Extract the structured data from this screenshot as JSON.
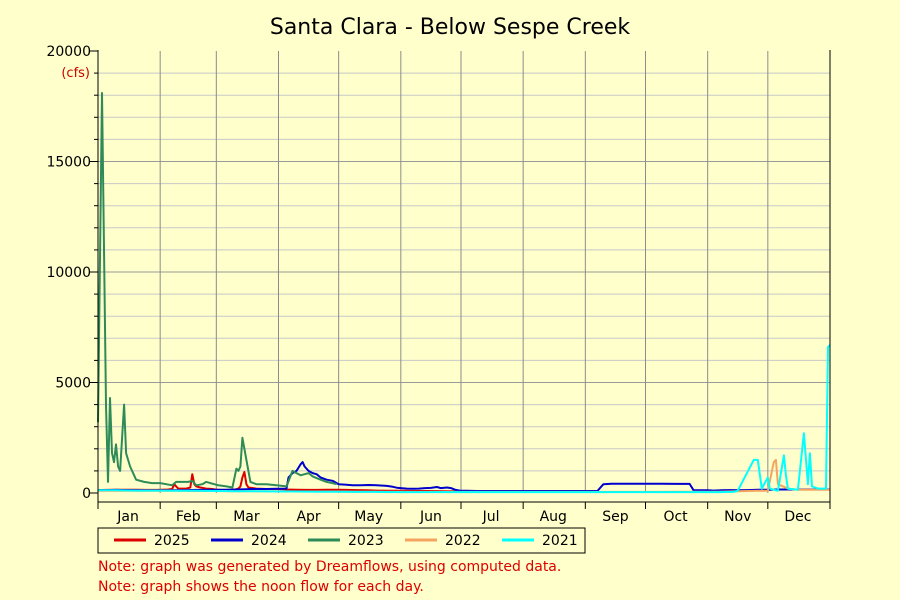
{
  "chart_data": {
    "type": "line",
    "title": "Santa Clara - Below Sespe Creek",
    "ylabel": "(cfs)",
    "xlabel": "",
    "ylim": [
      0,
      20000
    ],
    "y_ticks": [
      0,
      5000,
      10000,
      15000,
      20000
    ],
    "xlim": [
      1,
      366
    ],
    "x_ticks": [
      {
        "label": "Jan",
        "day": 16
      },
      {
        "label": "Feb",
        "day": 46
      },
      {
        "label": "Mar",
        "day": 75
      },
      {
        "label": "Apr",
        "day": 106
      },
      {
        "label": "May",
        "day": 136
      },
      {
        "label": "Jun",
        "day": 167
      },
      {
        "label": "Jul",
        "day": 197
      },
      {
        "label": "Aug",
        "day": 228
      },
      {
        "label": "Sep",
        "day": 259
      },
      {
        "label": "Oct",
        "day": 289
      },
      {
        "label": "Nov",
        "day": 320
      },
      {
        "label": "Dec",
        "day": 350
      }
    ],
    "month_starts": [
      1,
      32,
      60,
      91,
      121,
      152,
      182,
      213,
      244,
      274,
      305,
      335,
      366
    ],
    "grid": true,
    "legend_position": "bottom",
    "series": [
      {
        "name": "2025",
        "color": "#dd0000",
        "points": [
          [
            1,
            130
          ],
          [
            5,
            140
          ],
          [
            10,
            150
          ],
          [
            15,
            150
          ],
          [
            20,
            150
          ],
          [
            25,
            140
          ],
          [
            30,
            140
          ],
          [
            33,
            150
          ],
          [
            36,
            160
          ],
          [
            38,
            180
          ],
          [
            39,
            400
          ],
          [
            40,
            300
          ],
          [
            41,
            200
          ],
          [
            43,
            200
          ],
          [
            45,
            200
          ],
          [
            47,
            250
          ],
          [
            48,
            850
          ],
          [
            49,
            400
          ],
          [
            50,
            300
          ],
          [
            52,
            250
          ],
          [
            55,
            200
          ],
          [
            58,
            180
          ],
          [
            60,
            150
          ],
          [
            63,
            130
          ],
          [
            66,
            140
          ],
          [
            69,
            150
          ],
          [
            71,
            200
          ],
          [
            72,
            300
          ],
          [
            73,
            700
          ],
          [
            74,
            950
          ],
          [
            75,
            400
          ],
          [
            76,
            250
          ],
          [
            80,
            200
          ],
          [
            85,
            180
          ],
          [
            90,
            180
          ],
          [
            95,
            160
          ],
          [
            100,
            150
          ],
          [
            105,
            140
          ],
          [
            110,
            140
          ],
          [
            115,
            150
          ],
          [
            120,
            150
          ],
          [
            125,
            140
          ],
          [
            130,
            130
          ],
          [
            135,
            120
          ],
          [
            140,
            110
          ],
          [
            145,
            100
          ],
          [
            150,
            100
          ],
          [
            155,
            95
          ],
          [
            160,
            90
          ],
          [
            165,
            90
          ],
          [
            170,
            85
          ],
          [
            175,
            80
          ],
          [
            180,
            80
          ],
          [
            185,
            80
          ],
          [
            190,
            75
          ],
          [
            195,
            75
          ],
          [
            199,
            75
          ]
        ]
      },
      {
        "name": "2024",
        "color": "#0000cc",
        "points": [
          [
            1,
            130
          ],
          [
            5,
            130
          ],
          [
            10,
            140
          ],
          [
            15,
            130
          ],
          [
            20,
            130
          ],
          [
            25,
            120
          ],
          [
            30,
            120
          ],
          [
            33,
            120
          ],
          [
            40,
            130
          ],
          [
            45,
            130
          ],
          [
            50,
            140
          ],
          [
            55,
            140
          ],
          [
            60,
            150
          ],
          [
            65,
            150
          ],
          [
            70,
            160
          ],
          [
            75,
            170
          ],
          [
            80,
            180
          ],
          [
            85,
            180
          ],
          [
            90,
            190
          ],
          [
            95,
            200
          ],
          [
            96,
            700
          ],
          [
            98,
            900
          ],
          [
            100,
            1000
          ],
          [
            102,
            1300
          ],
          [
            103,
            1400
          ],
          [
            104,
            1200
          ],
          [
            106,
            1000
          ],
          [
            108,
            900
          ],
          [
            110,
            850
          ],
          [
            112,
            700
          ],
          [
            115,
            600
          ],
          [
            118,
            550
          ],
          [
            120,
            450
          ],
          [
            121,
            400
          ],
          [
            124,
            380
          ],
          [
            128,
            350
          ],
          [
            132,
            350
          ],
          [
            136,
            360
          ],
          [
            140,
            350
          ],
          [
            145,
            320
          ],
          [
            148,
            280
          ],
          [
            150,
            240
          ],
          [
            152,
            220
          ],
          [
            155,
            200
          ],
          [
            158,
            190
          ],
          [
            161,
            200
          ],
          [
            164,
            220
          ],
          [
            167,
            230
          ],
          [
            170,
            270
          ],
          [
            172,
            220
          ],
          [
            175,
            250
          ],
          [
            177,
            220
          ],
          [
            179,
            150
          ],
          [
            182,
            100
          ],
          [
            185,
            100
          ],
          [
            190,
            90
          ],
          [
            195,
            90
          ],
          [
            200,
            90
          ],
          [
            205,
            90
          ],
          [
            210,
            90
          ],
          [
            215,
            90
          ],
          [
            220,
            90
          ],
          [
            225,
            90
          ],
          [
            230,
            90
          ],
          [
            235,
            90
          ],
          [
            240,
            90
          ],
          [
            244,
            90
          ],
          [
            250,
            90
          ],
          [
            253,
            400
          ],
          [
            257,
            420
          ],
          [
            262,
            420
          ],
          [
            268,
            420
          ],
          [
            275,
            420
          ],
          [
            282,
            420
          ],
          [
            290,
            410
          ],
          [
            296,
            410
          ],
          [
            298,
            120
          ],
          [
            302,
            120
          ],
          [
            305,
            120
          ],
          [
            308,
            110
          ],
          [
            312,
            120
          ],
          [
            316,
            130
          ],
          [
            320,
            120
          ],
          [
            325,
            130
          ],
          [
            330,
            150
          ],
          [
            335,
            150
          ],
          [
            340,
            160
          ],
          [
            345,
            160
          ],
          [
            350,
            160
          ],
          [
            355,
            160
          ],
          [
            360,
            160
          ],
          [
            366,
            160
          ]
        ]
      },
      {
        "name": "2023",
        "color": "#2e8b57",
        "points": [
          [
            1,
            3200
          ],
          [
            3,
            18100
          ],
          [
            5,
            4000
          ],
          [
            6,
            500
          ],
          [
            7,
            4300
          ],
          [
            8,
            1800
          ],
          [
            9,
            1400
          ],
          [
            10,
            2200
          ],
          [
            11,
            1200
          ],
          [
            12,
            1000
          ],
          [
            13,
            2500
          ],
          [
            14,
            4000
          ],
          [
            15,
            1800
          ],
          [
            16,
            1500
          ],
          [
            17,
            1200
          ],
          [
            20,
            600
          ],
          [
            24,
            500
          ],
          [
            28,
            450
          ],
          [
            32,
            450
          ],
          [
            35,
            400
          ],
          [
            38,
            350
          ],
          [
            40,
            500
          ],
          [
            43,
            500
          ],
          [
            46,
            500
          ],
          [
            48,
            550
          ],
          [
            50,
            350
          ],
          [
            53,
            400
          ],
          [
            55,
            500
          ],
          [
            57,
            450
          ],
          [
            59,
            400
          ],
          [
            61,
            350
          ],
          [
            65,
            300
          ],
          [
            68,
            250
          ],
          [
            70,
            1100
          ],
          [
            71,
            1000
          ],
          [
            72,
            1200
          ],
          [
            73,
            2500
          ],
          [
            74,
            2000
          ],
          [
            75,
            1500
          ],
          [
            77,
            500
          ],
          [
            80,
            400
          ],
          [
            85,
            400
          ],
          [
            90,
            350
          ],
          [
            95,
            300
          ],
          [
            98,
            1000
          ],
          [
            100,
            900
          ],
          [
            102,
            800
          ],
          [
            104,
            850
          ],
          [
            106,
            900
          ],
          [
            108,
            750
          ],
          [
            112,
            600
          ],
          [
            115,
            500
          ],
          [
            118,
            450
          ],
          [
            120,
            400
          ]
        ]
      },
      {
        "name": "2022",
        "color": "#f4a460",
        "points": [
          [
            1,
            100
          ],
          [
            10,
            100
          ],
          [
            20,
            100
          ],
          [
            30,
            100
          ],
          [
            40,
            100
          ],
          [
            50,
            90
          ],
          [
            60,
            90
          ],
          [
            70,
            80
          ],
          [
            80,
            80
          ],
          [
            90,
            80
          ],
          [
            100,
            70
          ],
          [
            110,
            70
          ],
          [
            120,
            70
          ],
          [
            130,
            60
          ],
          [
            140,
            60
          ],
          [
            150,
            60
          ],
          [
            160,
            50
          ],
          [
            170,
            50
          ],
          [
            180,
            50
          ],
          [
            190,
            50
          ],
          [
            200,
            50
          ],
          [
            210,
            50
          ],
          [
            220,
            50
          ],
          [
            230,
            50
          ],
          [
            240,
            50
          ],
          [
            250,
            50
          ],
          [
            260,
            50
          ],
          [
            270,
            50
          ],
          [
            280,
            50
          ],
          [
            290,
            60
          ],
          [
            300,
            60
          ],
          [
            310,
            60
          ],
          [
            320,
            80
          ],
          [
            330,
            100
          ],
          [
            335,
            100
          ],
          [
            338,
            1400
          ],
          [
            339,
            1500
          ],
          [
            340,
            400
          ],
          [
            345,
            200
          ],
          [
            350,
            150
          ],
          [
            355,
            150
          ],
          [
            360,
            150
          ],
          [
            366,
            150
          ]
        ]
      },
      {
        "name": "2021",
        "color": "#00ffff",
        "points": [
          [
            1,
            120
          ],
          [
            10,
            120
          ],
          [
            20,
            110
          ],
          [
            30,
            110
          ],
          [
            40,
            100
          ],
          [
            50,
            100
          ],
          [
            60,
            90
          ],
          [
            70,
            80
          ],
          [
            80,
            80
          ],
          [
            90,
            70
          ],
          [
            100,
            70
          ],
          [
            110,
            60
          ],
          [
            120,
            60
          ],
          [
            130,
            50
          ],
          [
            140,
            50
          ],
          [
            150,
            40
          ],
          [
            160,
            40
          ],
          [
            170,
            40
          ],
          [
            180,
            40
          ],
          [
            190,
            40
          ],
          [
            200,
            40
          ],
          [
            210,
            40
          ],
          [
            220,
            40
          ],
          [
            230,
            40
          ],
          [
            240,
            40
          ],
          [
            250,
            40
          ],
          [
            260,
            40
          ],
          [
            270,
            40
          ],
          [
            280,
            40
          ],
          [
            290,
            40
          ],
          [
            300,
            40
          ],
          [
            310,
            40
          ],
          [
            318,
            50
          ],
          [
            320,
            100
          ],
          [
            328,
            1500
          ],
          [
            330,
            1500
          ],
          [
            332,
            200
          ],
          [
            335,
            700
          ],
          [
            336,
            200
          ],
          [
            340,
            100
          ],
          [
            343,
            1700
          ],
          [
            344,
            800
          ],
          [
            345,
            200
          ],
          [
            350,
            150
          ],
          [
            353,
            2700
          ],
          [
            355,
            400
          ],
          [
            356,
            1800
          ],
          [
            357,
            300
          ],
          [
            360,
            200
          ],
          [
            364,
            200
          ],
          [
            365,
            6600
          ],
          [
            366,
            6700
          ]
        ]
      }
    ]
  },
  "notes": [
    "Note: graph was generated by Dreamflows, using computed data.",
    "Note: graph shows the noon flow for each day."
  ]
}
